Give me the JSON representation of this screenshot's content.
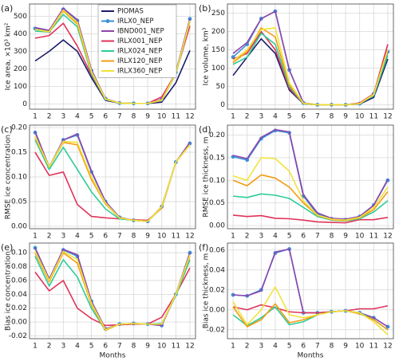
{
  "chart_data": [
    {
      "type": "line",
      "panel_label": "(a)",
      "ylabel": "Ice area, ×10³ km²",
      "x": [
        1,
        2,
        3,
        4,
        5,
        6,
        7,
        8,
        9,
        10,
        11,
        12
      ],
      "xlim": [
        0.6,
        12.4
      ],
      "xticks": [
        1,
        2,
        3,
        4,
        5,
        6,
        7,
        8,
        9,
        10,
        11,
        12
      ],
      "ylim": [
        -30,
        570
      ],
      "yticks": [
        0,
        100,
        200,
        300,
        400,
        500
      ],
      "grid": true,
      "legend": "upper center",
      "series": [
        {
          "name": "PIOMAS",
          "color": "#1c1c6b",
          "values": [
            245,
            300,
            365,
            300,
            150,
            20,
            5,
            3,
            3,
            10,
            120,
            305
          ]
        },
        {
          "name": "IRLX0_NEP",
          "color": "#3a8fd8",
          "marker": "o",
          "values": [
            430,
            415,
            540,
            475,
            190,
            30,
            5,
            3,
            3,
            25,
            180,
            485
          ]
        },
        {
          "name": "IBND001_NEP",
          "color": "#8e44ad",
          "values": [
            435,
            420,
            545,
            480,
            195,
            30,
            5,
            3,
            3,
            25,
            180,
            485
          ]
        },
        {
          "name": "IRLX001_NEP",
          "color": "#e0335a",
          "values": [
            375,
            390,
            460,
            330,
            165,
            25,
            5,
            3,
            3,
            40,
            175,
            445
          ]
        },
        {
          "name": "IRLX024_NEP",
          "color": "#2ecc9a",
          "values": [
            415,
            410,
            510,
            440,
            170,
            25,
            5,
            3,
            3,
            20,
            170,
            470
          ]
        },
        {
          "name": "IRLX120_NEP",
          "color": "#f39c12",
          "values": [
            425,
            410,
            530,
            455,
            180,
            28,
            5,
            3,
            3,
            20,
            175,
            470
          ]
        },
        {
          "name": "IRLX360_NEP",
          "color": "#f2e23a",
          "values": [
            425,
            412,
            535,
            465,
            185,
            28,
            5,
            3,
            3,
            22,
            175,
            475
          ]
        }
      ]
    },
    {
      "type": "line",
      "panel_label": "(b)",
      "ylabel": "Ice volume, km³",
      "x": [
        1,
        2,
        3,
        4,
        5,
        6,
        7,
        8,
        9,
        10,
        11,
        12
      ],
      "xlim": [
        0.6,
        12.4
      ],
      "xticks": [
        1,
        2,
        3,
        4,
        5,
        6,
        7,
        8,
        9,
        10,
        11,
        12
      ],
      "ylim": [
        -12,
        275
      ],
      "yticks": [
        0,
        50,
        100,
        150,
        200,
        250
      ],
      "grid": true,
      "series": [
        {
          "color": "#1c1c6b",
          "values": [
            80,
            130,
            180,
            140,
            40,
            3,
            0,
            0,
            0,
            2,
            20,
            125
          ]
        },
        {
          "color": "#3a8fd8",
          "marker": "o",
          "values": [
            130,
            165,
            235,
            255,
            95,
            5,
            0,
            0,
            0,
            3,
            30,
            145
          ]
        },
        {
          "color": "#8e44ad",
          "values": [
            140,
            170,
            235,
            255,
            95,
            5,
            0,
            0,
            0,
            3,
            30,
            145
          ]
        },
        {
          "color": "#e0335a",
          "values": [
            125,
            140,
            200,
            150,
            45,
            3,
            0,
            0,
            0,
            5,
            30,
            165
          ]
        },
        {
          "color": "#2ecc9a",
          "values": [
            110,
            130,
            195,
            165,
            50,
            3,
            0,
            0,
            0,
            3,
            25,
            135
          ]
        },
        {
          "color": "#f39c12",
          "values": [
            115,
            145,
            210,
            185,
            55,
            4,
            0,
            0,
            0,
            3,
            28,
            150
          ]
        },
        {
          "color": "#f2e23a",
          "values": [
            120,
            150,
            205,
            210,
            60,
            4,
            0,
            0,
            0,
            3,
            28,
            150
          ]
        }
      ]
    },
    {
      "type": "line",
      "panel_label": "(c)",
      "ylabel": "RMSE ice concentration",
      "x": [
        1,
        2,
        3,
        4,
        5,
        6,
        7,
        8,
        9,
        10,
        11,
        12
      ],
      "xlim": [
        0.6,
        12.4
      ],
      "xticks": [
        1,
        2,
        3,
        4,
        5,
        6,
        7,
        8,
        9,
        10,
        11,
        12
      ],
      "ylim": [
        -0.005,
        0.205
      ],
      "yticks": [
        {
          "value": 0,
          "label": "0.00"
        },
        0.05,
        {
          "value": 0.1,
          "label": "0.10"
        },
        0.15,
        {
          "value": 0.2,
          "label": "0.20"
        }
      ],
      "grid": true,
      "series": [
        {
          "color": "#3a8fd8",
          "marker": "o",
          "values": [
            0.19,
            0.12,
            0.175,
            0.185,
            0.11,
            0.05,
            0.018,
            0.012,
            0.01,
            0.04,
            0.13,
            0.168
          ]
        },
        {
          "color": "#8e44ad",
          "values": [
            0.192,
            0.12,
            0.175,
            0.187,
            0.112,
            0.05,
            0.018,
            0.012,
            0.01,
            0.04,
            0.13,
            0.17
          ]
        },
        {
          "color": "#e0335a",
          "values": [
            0.15,
            0.103,
            0.11,
            0.044,
            0.02,
            0.017,
            0.015,
            0.013,
            0.012,
            0.037,
            0.13,
            0.165
          ]
        },
        {
          "color": "#2ecc9a",
          "values": [
            0.175,
            0.115,
            0.16,
            0.115,
            0.07,
            0.035,
            0.015,
            0.012,
            0.01,
            0.038,
            0.13,
            0.165
          ]
        },
        {
          "color": "#f39c12",
          "values": [
            0.18,
            0.12,
            0.17,
            0.165,
            0.095,
            0.045,
            0.017,
            0.012,
            0.01,
            0.038,
            0.13,
            0.165
          ]
        },
        {
          "color": "#f2e23a",
          "values": [
            0.182,
            0.12,
            0.172,
            0.17,
            0.1,
            0.047,
            0.017,
            0.012,
            0.01,
            0.04,
            0.13,
            0.165
          ]
        }
      ]
    },
    {
      "type": "line",
      "panel_label": "(d)",
      "ylabel": "RMSE ice thickness, m",
      "x": [
        1,
        2,
        3,
        4,
        5,
        6,
        7,
        8,
        9,
        10,
        11,
        12
      ],
      "xlim": [
        0.6,
        12.4
      ],
      "xticks": [
        1,
        2,
        3,
        4,
        5,
        6,
        7,
        8,
        9,
        10,
        11,
        12
      ],
      "ylim": [
        -0.007,
        0.222
      ],
      "yticks": [
        {
          "value": 0,
          "label": "0.00"
        },
        0.05,
        {
          "value": 0.1,
          "label": "0.10"
        },
        0.15,
        {
          "value": 0.2,
          "label": "0.20"
        }
      ],
      "grid": true,
      "series": [
        {
          "color": "#3a8fd8",
          "marker": "o",
          "values": [
            0.152,
            0.145,
            0.192,
            0.21,
            0.205,
            0.065,
            0.025,
            0.015,
            0.013,
            0.02,
            0.045,
            0.1
          ]
        },
        {
          "color": "#8e44ad",
          "values": [
            0.155,
            0.148,
            0.195,
            0.212,
            0.207,
            0.068,
            0.028,
            0.016,
            0.014,
            0.02,
            0.045,
            0.102
          ]
        },
        {
          "color": "#e0335a",
          "values": [
            0.023,
            0.02,
            0.022,
            0.016,
            0.015,
            0.012,
            0.008,
            0.007,
            0.006,
            0.013,
            0.013,
            0.018
          ]
        },
        {
          "color": "#2ecc9a",
          "values": [
            0.065,
            0.062,
            0.07,
            0.067,
            0.06,
            0.04,
            0.02,
            0.012,
            0.01,
            0.015,
            0.03,
            0.055
          ]
        },
        {
          "color": "#f39c12",
          "values": [
            0.1,
            0.088,
            0.112,
            0.105,
            0.085,
            0.05,
            0.022,
            0.013,
            0.011,
            0.017,
            0.035,
            0.075
          ]
        },
        {
          "color": "#f2e23a",
          "values": [
            0.11,
            0.1,
            0.15,
            0.148,
            0.12,
            0.055,
            0.023,
            0.014,
            0.012,
            0.018,
            0.04,
            0.085
          ]
        }
      ]
    },
    {
      "type": "line",
      "panel_label": "(e)",
      "ylabel": "Bias ice concentration",
      "xlabel": "Months",
      "x": [
        1,
        2,
        3,
        4,
        5,
        6,
        7,
        8,
        9,
        10,
        11,
        12
      ],
      "xlim": [
        0.6,
        12.4
      ],
      "xticks": [
        1,
        2,
        3,
        4,
        5,
        6,
        7,
        8,
        9,
        10,
        11,
        12
      ],
      "ylim": [
        -0.024,
        0.114
      ],
      "yticks": [
        -0.02,
        {
          "value": 0,
          "label": "0.00"
        },
        0.02,
        0.04,
        0.06,
        0.08,
        {
          "value": 0.1,
          "label": "0.10"
        }
      ],
      "grid": true,
      "series": [
        {
          "color": "#3a8fd8",
          "marker": "o",
          "values": [
            0.107,
            0.062,
            0.104,
            0.095,
            0.03,
            -0.01,
            -0.003,
            -0.002,
            -0.003,
            -0.005,
            0.04,
            0.1
          ]
        },
        {
          "color": "#8e44ad",
          "values": [
            0.107,
            0.062,
            0.105,
            0.097,
            0.03,
            -0.01,
            -0.003,
            -0.002,
            -0.003,
            -0.005,
            0.04,
            0.1
          ]
        },
        {
          "color": "#e0335a",
          "values": [
            0.072,
            0.045,
            0.06,
            0.02,
            0.005,
            -0.005,
            -0.004,
            -0.003,
            -0.003,
            0.007,
            0.04,
            0.078
          ]
        },
        {
          "color": "#2ecc9a",
          "values": [
            0.095,
            0.052,
            0.09,
            0.065,
            0.02,
            -0.012,
            -0.003,
            -0.002,
            -0.003,
            -0.002,
            0.038,
            0.09
          ]
        },
        {
          "color": "#f39c12",
          "values": [
            0.1,
            0.058,
            0.1,
            0.085,
            0.025,
            -0.012,
            -0.003,
            -0.002,
            -0.003,
            -0.003,
            0.04,
            0.095
          ]
        },
        {
          "color": "#f2e23a",
          "values": [
            0.102,
            0.06,
            0.102,
            0.09,
            0.027,
            -0.011,
            -0.003,
            -0.002,
            -0.003,
            -0.003,
            0.04,
            0.097
          ]
        }
      ]
    },
    {
      "type": "line",
      "panel_label": "(f)",
      "ylabel": "Bias ice thickness, m",
      "xlabel": "Months",
      "x": [
        1,
        2,
        3,
        4,
        5,
        6,
        7,
        8,
        9,
        10,
        11,
        12
      ],
      "xlim": [
        0.6,
        12.4
      ],
      "xticks": [
        1,
        2,
        3,
        4,
        5,
        6,
        7,
        8,
        9,
        10,
        11,
        12
      ],
      "ylim": [
        -0.029,
        0.067
      ],
      "yticks": [
        -0.02,
        {
          "value": 0,
          "label": "0.00"
        },
        0.02,
        0.04,
        0.06
      ],
      "grid": true,
      "series": [
        {
          "color": "#3a8fd8",
          "marker": "o",
          "values": [
            0.015,
            0.014,
            0.02,
            0.057,
            0.061,
            -0.003,
            -0.003,
            -0.002,
            -0.001,
            -0.003,
            -0.008,
            -0.017
          ]
        },
        {
          "color": "#8e44ad",
          "values": [
            0.015,
            0.014,
            0.019,
            0.058,
            0.061,
            -0.003,
            -0.003,
            -0.002,
            -0.001,
            -0.003,
            -0.008,
            -0.017
          ]
        },
        {
          "color": "#e0335a",
          "values": [
            0.003,
            0.0,
            0.005,
            0.002,
            -0.002,
            -0.003,
            -0.003,
            -0.002,
            -0.001,
            0.001,
            0.001,
            0.004
          ]
        },
        {
          "color": "#2ecc9a",
          "values": [
            -0.005,
            -0.016,
            -0.008,
            0.003,
            -0.015,
            -0.012,
            -0.005,
            -0.002,
            -0.001,
            -0.003,
            -0.01,
            -0.02
          ]
        },
        {
          "color": "#f39c12",
          "values": [
            0.003,
            -0.017,
            -0.01,
            0.006,
            -0.013,
            -0.01,
            -0.005,
            -0.002,
            -0.001,
            -0.004,
            -0.01,
            -0.02
          ]
        },
        {
          "color": "#f2e23a",
          "values": [
            0.008,
            -0.015,
            0.0,
            0.023,
            -0.005,
            -0.008,
            -0.005,
            -0.002,
            -0.001,
            -0.003,
            -0.012,
            -0.025
          ]
        }
      ]
    }
  ]
}
